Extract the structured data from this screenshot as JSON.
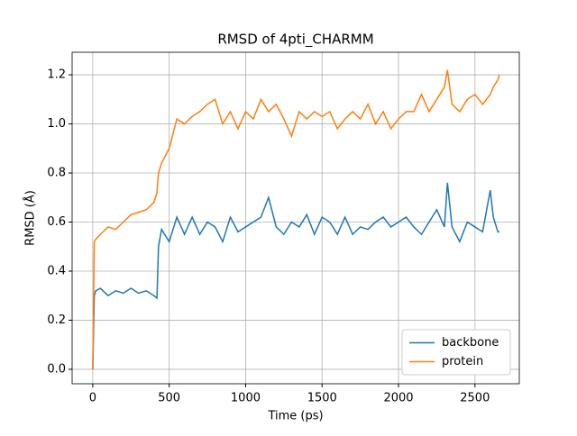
{
  "chart_data": {
    "type": "line",
    "title": "RMSD of 4pti_CHARMM",
    "x_label": "Time (ps)",
    "y_label": "RMSD (Å)",
    "x": [
      0,
      10,
      20,
      50,
      100,
      150,
      200,
      250,
      300,
      350,
      400,
      420,
      430,
      450,
      500,
      550,
      600,
      650,
      700,
      750,
      800,
      850,
      900,
      950,
      1000,
      1050,
      1100,
      1150,
      1200,
      1250,
      1300,
      1350,
      1400,
      1450,
      1500,
      1550,
      1600,
      1650,
      1700,
      1750,
      1800,
      1850,
      1900,
      1950,
      2000,
      2050,
      2100,
      2150,
      2200,
      2250,
      2300,
      2320,
      2350,
      2400,
      2450,
      2500,
      2550,
      2600,
      2620,
      2650,
      2660
    ],
    "series": [
      {
        "name": "backbone",
        "color": "#1f77b4",
        "values": [
          0,
          0.3,
          0.32,
          0.33,
          0.3,
          0.32,
          0.31,
          0.33,
          0.31,
          0.32,
          0.3,
          0.29,
          0.5,
          0.57,
          0.52,
          0.62,
          0.55,
          0.62,
          0.55,
          0.6,
          0.58,
          0.52,
          0.62,
          0.56,
          0.58,
          0.6,
          0.62,
          0.7,
          0.58,
          0.55,
          0.6,
          0.58,
          0.63,
          0.55,
          0.62,
          0.6,
          0.55,
          0.62,
          0.55,
          0.58,
          0.57,
          0.6,
          0.62,
          0.58,
          0.6,
          0.62,
          0.58,
          0.55,
          0.6,
          0.65,
          0.58,
          0.76,
          0.58,
          0.52,
          0.6,
          0.58,
          0.56,
          0.73,
          0.62,
          0.56,
          0.56
        ]
      },
      {
        "name": "protein",
        "color": "#ff7f0e",
        "values": [
          0,
          0.52,
          0.53,
          0.55,
          0.58,
          0.57,
          0.6,
          0.63,
          0.64,
          0.65,
          0.68,
          0.72,
          0.8,
          0.84,
          0.9,
          1.02,
          1.0,
          1.03,
          1.05,
          1.08,
          1.1,
          1.0,
          1.05,
          0.98,
          1.05,
          1.02,
          1.1,
          1.05,
          1.08,
          1.02,
          0.95,
          1.05,
          1.02,
          1.05,
          1.03,
          1.05,
          0.98,
          1.02,
          1.05,
          1.02,
          1.08,
          1.0,
          1.05,
          0.98,
          1.02,
          1.05,
          1.05,
          1.12,
          1.05,
          1.1,
          1.15,
          1.22,
          1.08,
          1.05,
          1.1,
          1.12,
          1.08,
          1.12,
          1.15,
          1.18,
          1.2
        ]
      }
    ],
    "xlim": [
      -135,
      2790
    ],
    "ylim": [
      -0.059,
      1.292
    ],
    "xticks": [
      0,
      500,
      1000,
      1500,
      2000,
      2500
    ],
    "yticks": [
      {
        "value": 0,
        "label": "0.0"
      },
      0.2,
      0.4,
      0.6,
      0.8,
      {
        "value": 1,
        "label": "1.0"
      },
      1.2
    ],
    "grid": true,
    "legend": "lower right"
  }
}
